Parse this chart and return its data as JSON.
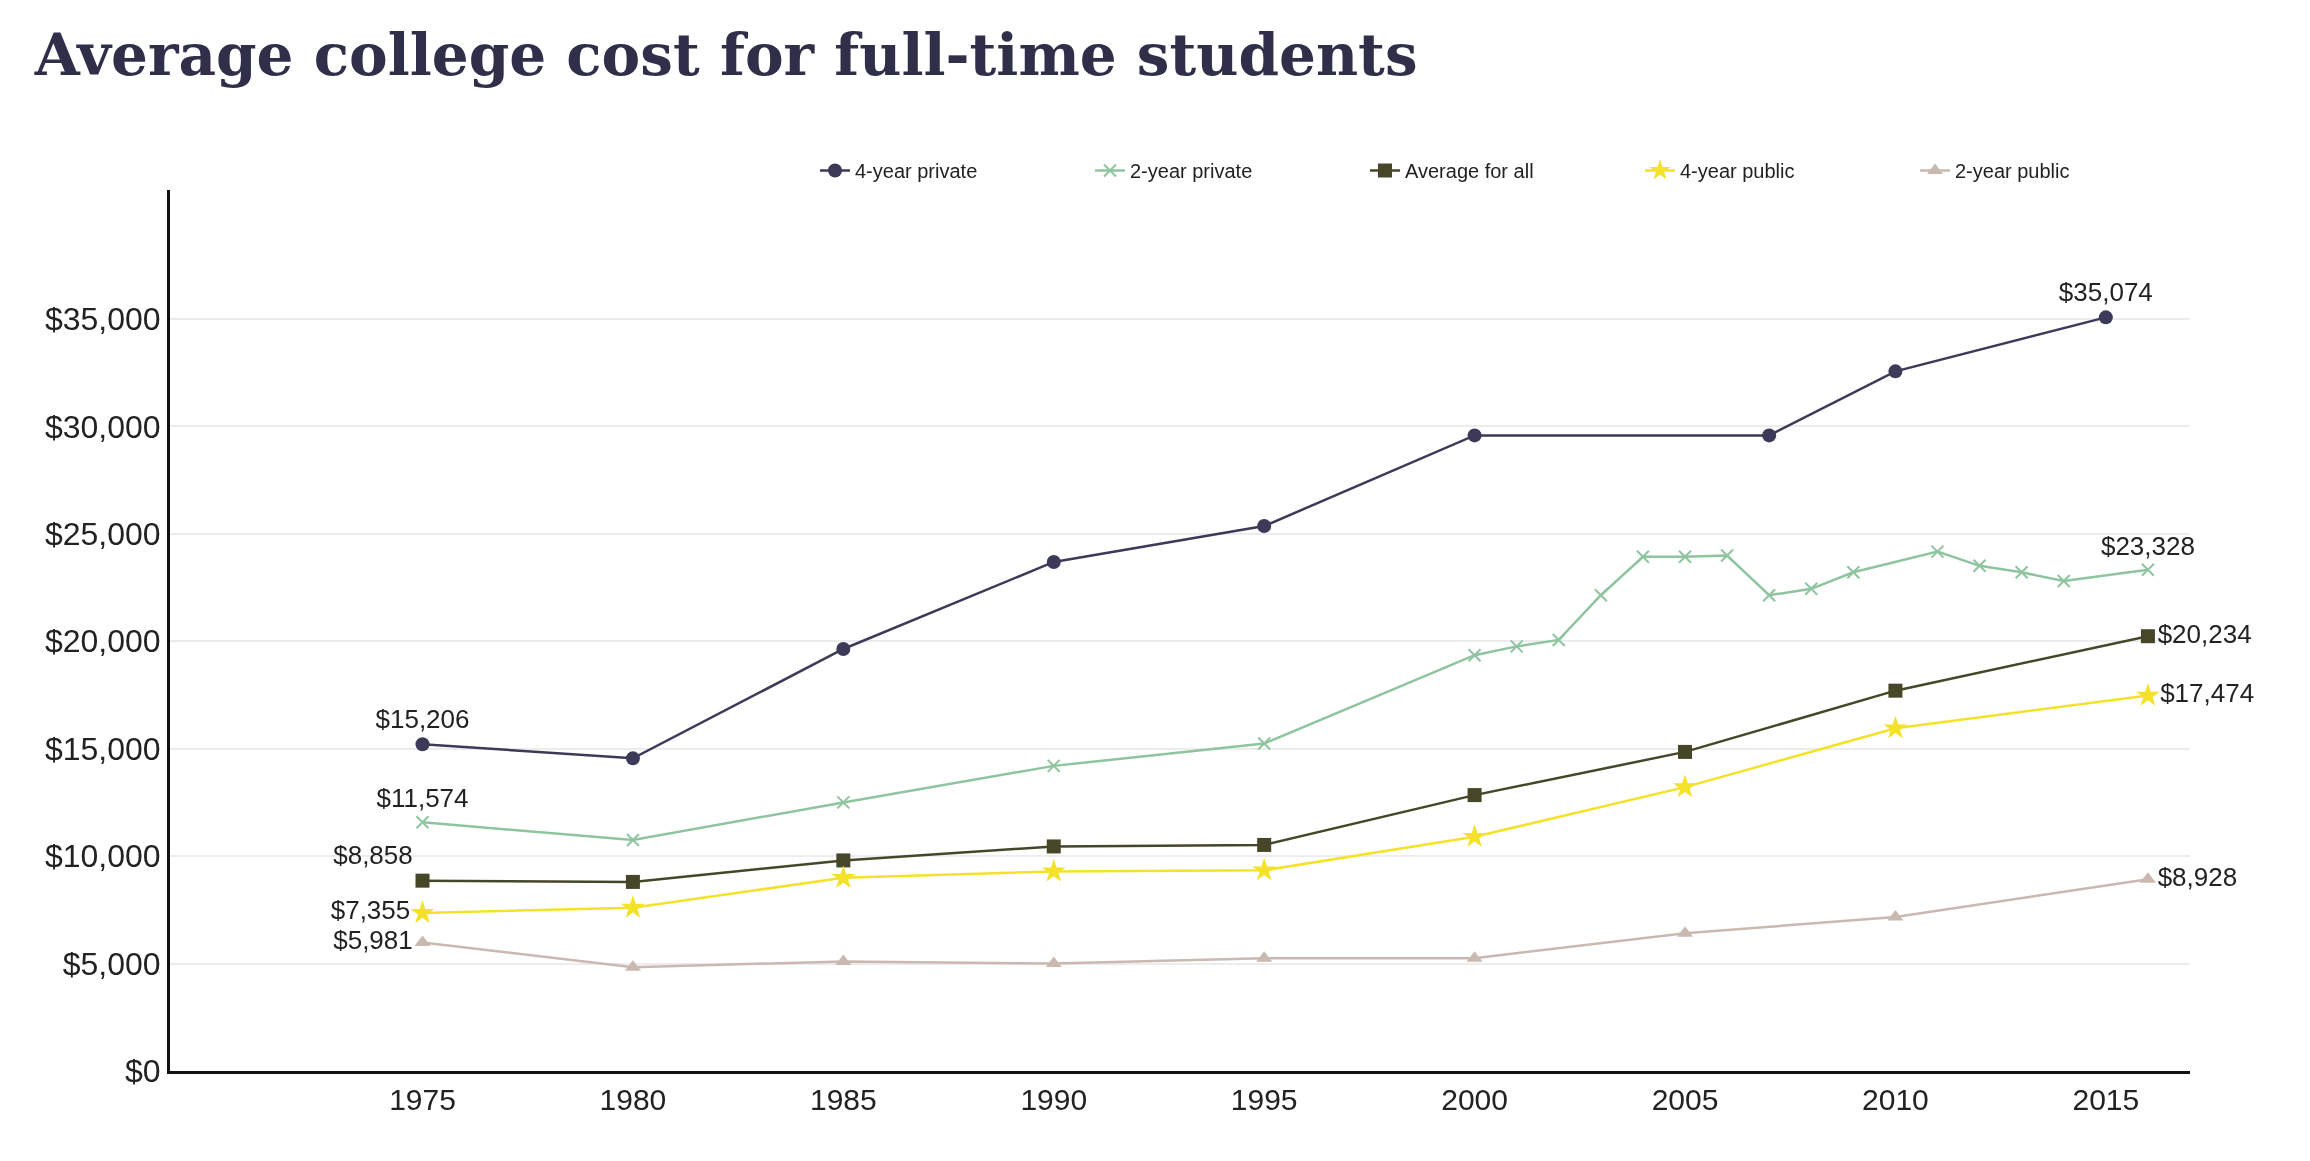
{
  "chart_data": {
    "type": "line",
    "title": "Average college cost for full-time students",
    "xlim": [
      1969,
      2017
    ],
    "xticks": [
      1975,
      1980,
      1985,
      1990,
      1995,
      2000,
      2005,
      2010,
      2015
    ],
    "ylim": [
      0,
      41000
    ],
    "yticks": [
      {
        "value": 0,
        "label": "$0"
      },
      {
        "value": 5000,
        "label": "$5,000"
      },
      {
        "value": 10000,
        "label": "$10,000"
      },
      {
        "value": 15000,
        "label": "$15,000"
      },
      {
        "value": 20000,
        "label": "$20,000"
      },
      {
        "value": 25000,
        "label": "$25,000"
      },
      {
        "value": 30000,
        "label": "$30,000"
      },
      {
        "value": 35000,
        "label": "$35,000"
      }
    ],
    "grid": "y",
    "legend": "top right",
    "series": [
      {
        "name": "4-year private",
        "color": "#3b3a58",
        "marker": "circle",
        "x": [
          1975,
          1980,
          1985,
          1990,
          1995,
          2000,
          2007,
          2010,
          2015
        ],
        "values": [
          15206,
          14550,
          19640,
          23690,
          25360,
          29580,
          29580,
          32560,
          35074
        ],
        "value_labels": [
          "$15,206",
          null,
          null,
          null,
          null,
          null,
          null,
          null,
          "$35,074"
        ]
      },
      {
        "name": "2-year private",
        "color": "#8fc4a0",
        "marker": "cross",
        "x": [
          1975,
          1980,
          1985,
          1990,
          1995,
          2000,
          2001,
          2002,
          2003,
          2004,
          2005,
          2006,
          2007,
          2008,
          2009,
          2011,
          2012,
          2013,
          2014,
          2016
        ],
        "values": [
          11574,
          10750,
          12500,
          14200,
          15240,
          19350,
          19760,
          20060,
          22140,
          23930,
          23930,
          23990,
          22140,
          22440,
          23210,
          24170,
          23510,
          23210,
          22800,
          23328
        ],
        "value_labels": [
          "$11,574",
          null,
          null,
          null,
          null,
          null,
          null,
          null,
          null,
          null,
          null,
          null,
          null,
          null,
          null,
          null,
          null,
          null,
          null,
          "$23,328"
        ]
      },
      {
        "name": "Average for all",
        "color": "#464628",
        "marker": "square",
        "x": [
          1975,
          1980,
          1985,
          1990,
          1995,
          2000,
          2005,
          2010,
          2016
        ],
        "values": [
          8858,
          8800,
          9800,
          10450,
          10520,
          12840,
          14850,
          17700,
          20234
        ],
        "value_labels": [
          "$8,858",
          null,
          null,
          null,
          null,
          null,
          null,
          null,
          "$20,234"
        ]
      },
      {
        "name": "4-year public",
        "color": "#f4e22a",
        "marker": "star",
        "x": [
          1975,
          1980,
          1985,
          1990,
          1995,
          2000,
          2005,
          2010,
          2016
        ],
        "values": [
          7355,
          7600,
          8990,
          9290,
          9340,
          10900,
          13210,
          15950,
          17474
        ],
        "value_labels": [
          "$7,355",
          null,
          null,
          null,
          null,
          null,
          null,
          null,
          "$17,474"
        ]
      },
      {
        "name": "2-year public",
        "color": "#c9b9b1",
        "marker": "triangle",
        "x": [
          1975,
          1980,
          1985,
          1990,
          1995,
          2000,
          2005,
          2010,
          2016
        ],
        "values": [
          5981,
          4830,
          5100,
          5000,
          5250,
          5250,
          6410,
          7170,
          8928
        ],
        "value_labels": [
          "$5,981",
          null,
          null,
          null,
          null,
          null,
          null,
          null,
          "$8,928"
        ]
      }
    ]
  }
}
